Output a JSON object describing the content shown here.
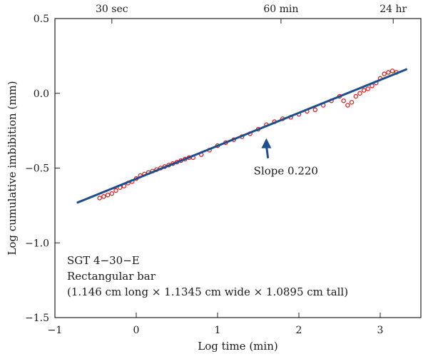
{
  "chart_data": {
    "type": "scatter",
    "xlabel": "Log time (min)",
    "ylabel": "Log cumulative imbibition (mm)",
    "xlim": [
      -1,
      3.5
    ],
    "ylim": [
      -1.5,
      0.5
    ],
    "x_ticks": [
      -1,
      0,
      1,
      2,
      3
    ],
    "x_tick_labels": [
      "−1",
      "0",
      "1",
      "2",
      "3"
    ],
    "y_ticks": [
      -1.5,
      -1.0,
      -0.5,
      0.0,
      0.5
    ],
    "y_tick_labels": [
      "−1.5",
      "−1.0",
      "−0.5",
      "0.0",
      "0.5"
    ],
    "top_axis": {
      "ticks": [
        -0.3,
        1.78,
        3.16
      ],
      "labels": [
        "30 sec",
        "60 min",
        "24 hr"
      ]
    },
    "grid": false,
    "series": [
      {
        "style": "scatter",
        "color": "#e02020",
        "x": [
          -0.45,
          -0.4,
          -0.35,
          -0.3,
          -0.25,
          -0.2,
          -0.15,
          -0.1,
          -0.05,
          0.0,
          0.05,
          0.1,
          0.15,
          0.2,
          0.25,
          0.3,
          0.35,
          0.4,
          0.45,
          0.5,
          0.55,
          0.6,
          0.65,
          0.7,
          0.8,
          0.9,
          1.0,
          1.1,
          1.2,
          1.3,
          1.4,
          1.5,
          1.6,
          1.7,
          1.8,
          1.9,
          2.0,
          2.1,
          2.2,
          2.3,
          2.4,
          2.5,
          2.55,
          2.6,
          2.65,
          2.7,
          2.75,
          2.8,
          2.85,
          2.9,
          2.95,
          3.0,
          3.05,
          3.1,
          3.15,
          3.2
        ],
        "y": [
          -0.7,
          -0.69,
          -0.68,
          -0.67,
          -0.65,
          -0.63,
          -0.62,
          -0.6,
          -0.59,
          -0.57,
          -0.55,
          -0.54,
          -0.53,
          -0.52,
          -0.51,
          -0.5,
          -0.49,
          -0.48,
          -0.47,
          -0.46,
          -0.45,
          -0.44,
          -0.43,
          -0.43,
          -0.41,
          -0.38,
          -0.35,
          -0.33,
          -0.31,
          -0.29,
          -0.27,
          -0.24,
          -0.21,
          -0.19,
          -0.17,
          -0.16,
          -0.14,
          -0.12,
          -0.11,
          -0.08,
          -0.05,
          -0.02,
          -0.05,
          -0.08,
          -0.06,
          -0.02,
          0.0,
          0.02,
          0.03,
          0.05,
          0.07,
          0.1,
          0.13,
          0.14,
          0.15,
          0.14
        ]
      },
      {
        "style": "line",
        "color": "#1f4e8c",
        "x": [
          -0.72,
          3.32
        ],
        "y": [
          -0.73,
          0.16
        ]
      }
    ],
    "annotations": [
      {
        "text": "Slope 0.220",
        "x": 1.62,
        "y": -0.52,
        "arrow_to": [
          1.6,
          -0.3
        ]
      }
    ],
    "info_box": [
      "SGT 4−30−E",
      "Rectangular bar",
      "(1.146 cm long × 1.1345 cm wide × 1.0895 cm tall)"
    ]
  }
}
